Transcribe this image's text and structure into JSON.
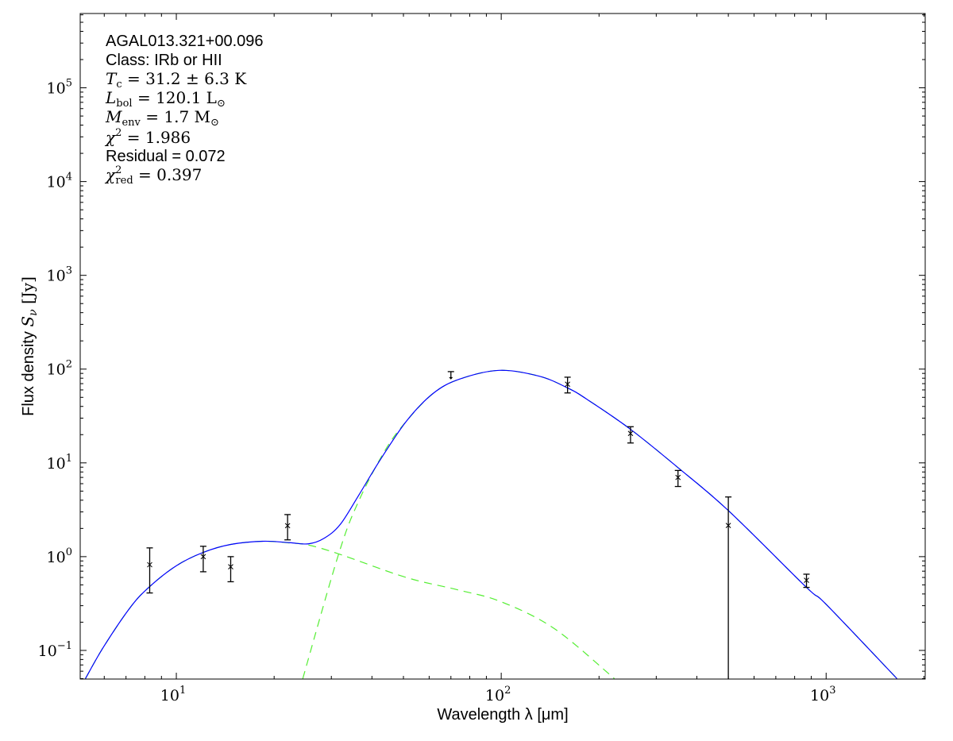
{
  "chart_data": {
    "type": "scatter",
    "xlabel": "Wavelength λ [μm]",
    "ylabel_prefix": "Flux density ",
    "ylabel_math": "S",
    "ylabel_sub": "ν",
    "ylabel_unit": " [Jy]",
    "xscale": "log",
    "yscale": "log",
    "xlim": [
      5.06,
      2018
    ],
    "ylim": [
      0.0495,
      620000
    ],
    "grid": false,
    "x_ticks": [
      {
        "exp": "1",
        "value": 10
      },
      {
        "exp": "2",
        "value": 100
      },
      {
        "exp": "3",
        "value": 1000
      }
    ],
    "y_ticks": [
      {
        "exp": "−1",
        "value": 0.1
      },
      {
        "exp": "0",
        "value": 1
      },
      {
        "exp": "1",
        "value": 10
      },
      {
        "exp": "2",
        "value": 100
      },
      {
        "exp": "3",
        "value": 1000
      },
      {
        "exp": "4",
        "value": 10000
      },
      {
        "exp": "5",
        "value": 100000
      }
    ],
    "colors": {
      "total_model": "#0000ff",
      "components": "#55ee33",
      "data": "#000000"
    },
    "measurements": [
      {
        "x": 8.28,
        "y": 0.82,
        "ylo": 0.41,
        "yhi": 1.24
      },
      {
        "x": 12.1,
        "y": 1.0,
        "ylo": 0.69,
        "yhi": 1.29
      },
      {
        "x": 14.7,
        "y": 0.78,
        "ylo": 0.54,
        "yhi": 1.0
      },
      {
        "x": 22.0,
        "y": 2.14,
        "ylo": 1.51,
        "yhi": 2.81
      },
      {
        "x": 160,
        "y": 69,
        "ylo": 55.7,
        "yhi": 82
      },
      {
        "x": 250,
        "y": 20.6,
        "ylo": 16.3,
        "yhi": 24.3
      },
      {
        "x": 350,
        "y": 7.0,
        "ylo": 5.6,
        "yhi": 8.3
      },
      {
        "x": 500,
        "y": 2.15,
        "ylo": 0.01,
        "yhi": 4.33
      },
      {
        "x": 870,
        "y": 0.56,
        "ylo": 0.47,
        "yhi": 0.65
      }
    ],
    "upper_limits": [
      {
        "x": 70,
        "y": 94
      }
    ],
    "total_model": [
      [
        5.25,
        0.05
      ],
      [
        5.98,
        0.11
      ],
      [
        7.23,
        0.29
      ],
      [
        8.28,
        0.48
      ],
      [
        10,
        0.8
      ],
      [
        12.1,
        1.11
      ],
      [
        14.7,
        1.35
      ],
      [
        18.5,
        1.46
      ],
      [
        22.3,
        1.41
      ],
      [
        25.5,
        1.37
      ],
      [
        28.5,
        1.57
      ],
      [
        31.9,
        2.19
      ],
      [
        36.4,
        4.5
      ],
      [
        42.3,
        10.6
      ],
      [
        51,
        27.7
      ],
      [
        61.7,
        55
      ],
      [
        74.3,
        78
      ],
      [
        98.6,
        97
      ],
      [
        131,
        84
      ],
      [
        160,
        63
      ],
      [
        183,
        48
      ],
      [
        250,
        22.8
      ],
      [
        350,
        8.9
      ],
      [
        500,
        3.1
      ],
      [
        870,
        0.47
      ],
      [
        1000,
        0.31
      ],
      [
        1652,
        0.05
      ]
    ],
    "warm_component": [
      [
        5.25,
        0.05
      ],
      [
        5.98,
        0.11
      ],
      [
        7.23,
        0.29
      ],
      [
        8.28,
        0.48
      ],
      [
        10,
        0.8
      ],
      [
        12.1,
        1.11
      ],
      [
        14.7,
        1.35
      ],
      [
        18.5,
        1.46
      ],
      [
        22.3,
        1.4
      ],
      [
        25.5,
        1.33
      ],
      [
        31.6,
        1.07
      ],
      [
        51,
        0.6
      ],
      [
        74,
        0.44
      ],
      [
        100,
        0.33
      ],
      [
        146,
        0.17
      ],
      [
        223,
        0.05
      ]
    ],
    "cold_component": [
      [
        24.5,
        0.05
      ],
      [
        31.6,
        1.07
      ],
      [
        36.4,
        3.9
      ],
      [
        43.9,
        13.6
      ],
      [
        51,
        27.7
      ],
      [
        61.7,
        55
      ],
      [
        74.3,
        78
      ],
      [
        98.6,
        97
      ],
      [
        131,
        84
      ],
      [
        160,
        63
      ],
      [
        183,
        48
      ],
      [
        250,
        22.8
      ],
      [
        350,
        8.9
      ],
      [
        500,
        3.1
      ],
      [
        870,
        0.47
      ],
      [
        1000,
        0.31
      ],
      [
        1652,
        0.05
      ]
    ],
    "annotations": {
      "source": "AGAL013.321+00.096",
      "class_label": "Class: IRb or HII",
      "tc": {
        "sym": "T",
        "sub": "c",
        "rest": " = 31.2 ± 6.3 K"
      },
      "lbol": {
        "sym": "L",
        "sub": "bol",
        "rest": " = 120.1 L",
        "sun": "⊙"
      },
      "menv": {
        "sym": "M",
        "sub": "env",
        "rest": " = 1.7 M",
        "sun": "⊙"
      },
      "chi2": {
        "sym": "χ",
        "sup": "2",
        "rest": " = 1.986"
      },
      "residual": "Residual = 0.072",
      "chi2red": {
        "sym": "χ",
        "sup": "2",
        "sub": "red",
        "rest": " = 0.397"
      }
    }
  }
}
